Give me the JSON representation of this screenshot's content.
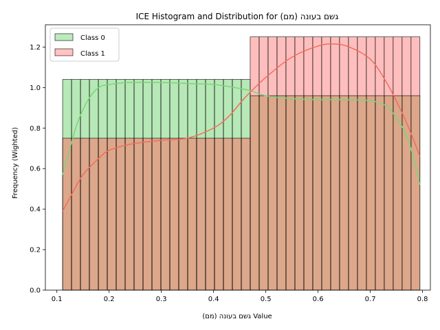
{
  "chart_data": {
    "type": "bar",
    "title": "ICE Histogram and Distribution for גשם בעונה (מם)",
    "xlabel": "גשם בעונה (מם) Value",
    "ylabel": "Frequency (Wighted)",
    "xlim": [
      0.078,
      0.815
    ],
    "ylim": [
      0,
      1.31
    ],
    "grid": false,
    "legend_position": "top-left",
    "x_ticks": [
      {
        "value": 0.1,
        "label": "0.1"
      },
      {
        "value": 0.2,
        "label": "0.2"
      },
      {
        "value": 0.3,
        "label": "0.3"
      },
      {
        "value": 0.4,
        "label": "0.4"
      },
      {
        "value": 0.5,
        "label": "0.5"
      },
      {
        "value": 0.6,
        "label": "0.6"
      },
      {
        "value": 0.7,
        "label": "0.7"
      },
      {
        "value": 0.8,
        "label": "0.8"
      }
    ],
    "y_ticks": [
      {
        "value": 0.0,
        "label": "0.0"
      },
      {
        "value": 0.2,
        "label": "0.2"
      },
      {
        "value": 0.4,
        "label": "0.4"
      },
      {
        "value": 0.6,
        "label": "0.6"
      },
      {
        "value": 0.8,
        "label": "0.8"
      },
      {
        "value": 1.0,
        "label": "1.0"
      },
      {
        "value": 1.2,
        "label": "1.2"
      }
    ],
    "bin_range": [
      0.111,
      0.795
    ],
    "bin_count": 40,
    "series": [
      {
        "name": "Class 0",
        "fill": "#90dc90",
        "line": "#7ad67a",
        "bin_values": [
          1.04,
          1.04,
          1.04,
          1.04,
          1.04,
          1.04,
          1.04,
          1.04,
          1.04,
          1.04,
          1.04,
          1.04,
          1.04,
          1.04,
          1.04,
          1.04,
          1.04,
          1.04,
          1.04,
          1.04,
          1.04,
          0.96,
          0.96,
          0.96,
          0.96,
          0.96,
          0.96,
          0.96,
          0.96,
          0.96,
          0.96,
          0.96,
          0.96,
          0.96,
          0.96,
          0.96,
          0.96,
          0.96,
          0.96,
          0.96
        ],
        "kde": [
          [
            0.111,
            0.57
          ],
          [
            0.125,
            0.7
          ],
          [
            0.14,
            0.83
          ],
          [
            0.16,
            0.94
          ],
          [
            0.18,
            1.0
          ],
          [
            0.2,
            1.015
          ],
          [
            0.24,
            1.025
          ],
          [
            0.3,
            1.025
          ],
          [
            0.35,
            1.02
          ],
          [
            0.4,
            1.015
          ],
          [
            0.44,
            1.0
          ],
          [
            0.47,
            0.985
          ],
          [
            0.5,
            0.96
          ],
          [
            0.55,
            0.945
          ],
          [
            0.6,
            0.94
          ],
          [
            0.65,
            0.94
          ],
          [
            0.7,
            0.935
          ],
          [
            0.73,
            0.91
          ],
          [
            0.75,
            0.85
          ],
          [
            0.77,
            0.76
          ],
          [
            0.785,
            0.63
          ],
          [
            0.795,
            0.52
          ]
        ]
      },
      {
        "name": "Class 1",
        "fill": "#ff9b9b",
        "line": "#f26d5b",
        "bin_values": [
          0.75,
          0.75,
          0.75,
          0.75,
          0.75,
          0.75,
          0.75,
          0.75,
          0.75,
          0.75,
          0.75,
          0.75,
          0.75,
          0.75,
          0.75,
          0.75,
          0.75,
          0.75,
          0.75,
          0.75,
          0.75,
          1.25,
          1.25,
          1.25,
          1.25,
          1.25,
          1.25,
          1.25,
          1.25,
          1.25,
          1.25,
          1.25,
          1.25,
          1.25,
          1.25,
          1.25,
          1.25,
          1.25,
          1.25,
          1.25
        ],
        "kde": [
          [
            0.111,
            0.39
          ],
          [
            0.13,
            0.48
          ],
          [
            0.15,
            0.57
          ],
          [
            0.18,
            0.65
          ],
          [
            0.2,
            0.69
          ],
          [
            0.24,
            0.72
          ],
          [
            0.3,
            0.74
          ],
          [
            0.35,
            0.75
          ],
          [
            0.4,
            0.8
          ],
          [
            0.43,
            0.86
          ],
          [
            0.46,
            0.95
          ],
          [
            0.5,
            1.05
          ],
          [
            0.55,
            1.15
          ],
          [
            0.6,
            1.205
          ],
          [
            0.63,
            1.215
          ],
          [
            0.66,
            1.2
          ],
          [
            0.7,
            1.14
          ],
          [
            0.73,
            1.03
          ],
          [
            0.76,
            0.88
          ],
          [
            0.78,
            0.76
          ],
          [
            0.795,
            0.66
          ]
        ]
      }
    ],
    "overlap_fill": "#dca78a"
  }
}
